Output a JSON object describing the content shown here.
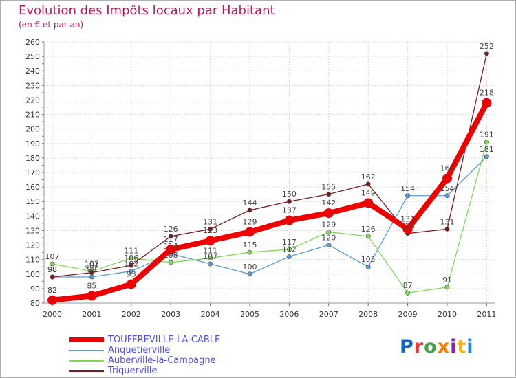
{
  "title": "Evolution des Impôts locaux par Habitant",
  "subtitle": "(en € et par an)",
  "logo": {
    "text": "Proxiti",
    "colors": [
      "#1565c0",
      "#e53935",
      "#43a047",
      "#f57c00",
      "#8e24aa",
      "#ffb300",
      "#1e88e5"
    ]
  },
  "chart_data": {
    "type": "line",
    "title": "Evolution des Impôts locaux par Habitant",
    "ylabel": "(en € et par an)",
    "xlabel": "",
    "x": [
      "2000",
      "2001",
      "2002",
      "2003",
      "2004",
      "2005",
      "2006",
      "2007",
      "2008",
      "2009",
      "2010",
      "2011"
    ],
    "ylim": [
      80,
      260
    ],
    "yticks": [
      80,
      90,
      100,
      110,
      120,
      130,
      140,
      150,
      160,
      170,
      180,
      190,
      200,
      210,
      220,
      230,
      240,
      250,
      260
    ],
    "grid": true,
    "legend_position": "bottom-left",
    "series": [
      {
        "name": "Anquetierville",
        "color": "#5b9bd5",
        "values": [
          98,
          98,
          102,
          114,
          107,
          100,
          112,
          120,
          105,
          154,
          154,
          181
        ],
        "labels": [
          "98",
          "98",
          "102",
          "114",
          "107",
          "100",
          "112",
          "120",
          "105",
          "154",
          "154",
          "181"
        ]
      },
      {
        "name": "Auberville-la-Campagne",
        "color": "#7ed957",
        "values": [
          107,
          102,
          111,
          108,
          111,
          115,
          117,
          129,
          126,
          87,
          91,
          191
        ],
        "labels": [
          "107",
          "102",
          "111",
          "108",
          "111",
          "115",
          "117",
          "129",
          "126",
          "87",
          "91",
          "191"
        ]
      },
      {
        "name": "Triquerville",
        "color": "#7b1c1c",
        "values": [
          98,
          101,
          106,
          126,
          131,
          144,
          150,
          155,
          162,
          128,
          131,
          252
        ],
        "labels": [
          "98",
          "101",
          "106",
          "126",
          "131",
          "144",
          "150",
          "155",
          "162",
          "128",
          "131",
          "252"
        ]
      },
      {
        "name": "TOUFFREVILLE-LA-CABLE",
        "color": "#ee0000",
        "values": [
          82,
          85,
          93,
          117,
          123,
          129,
          137,
          142,
          149,
          131,
          166,
          218
        ],
        "labels": [
          "82",
          "85",
          "93",
          "117",
          "123",
          "129",
          "137",
          "142",
          "149",
          "131",
          "166",
          "218"
        ]
      }
    ],
    "legend": [
      "TOUFFREVILLE-LA-CABLE",
      "Anquetierville",
      "Auberville-la-Campagne",
      "Triquerville"
    ]
  }
}
